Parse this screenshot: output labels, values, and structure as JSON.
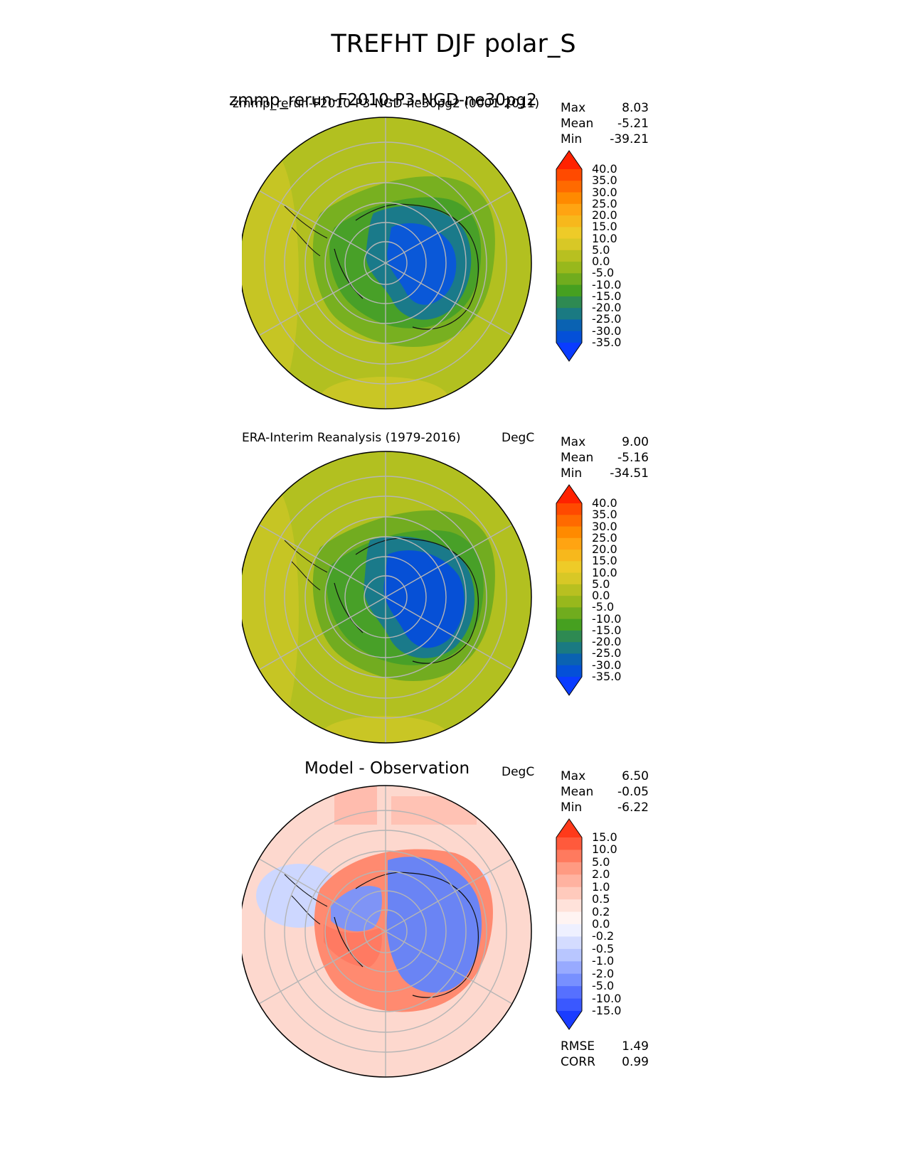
{
  "figure": {
    "title": "TREFHT DJF polar_S"
  },
  "panels": [
    {
      "id": "test",
      "title_large": "zmmp_rerun-F2010-P3-NGD-ne30pg2",
      "title_small": "zmmp_rerun-F2010-P3-NGD-ne30pg2 (0001-2011)",
      "units": "",
      "stats": {
        "max_label": "Max",
        "max": "8.03",
        "mean_label": "Mean",
        "mean": "-5.21",
        "min_label": "Min",
        "min": "-39.21"
      }
    },
    {
      "id": "reference",
      "title_small": "ERA-Interim Reanalysis (1979-2016)",
      "units": "DegC",
      "stats": {
        "max_label": "Max",
        "max": "9.00",
        "mean_label": "Mean",
        "mean": "-5.16",
        "min_label": "Min",
        "min": "-34.51"
      }
    },
    {
      "id": "diff",
      "title_large": "Model - Observation",
      "units": "DegC",
      "stats": {
        "max_label": "Max",
        "max": "6.50",
        "mean_label": "Mean",
        "mean": "-0.05",
        "min_label": "Min",
        "min": "-6.22"
      },
      "metrics": {
        "rmse_label": "RMSE",
        "rmse": "1.49",
        "corr_label": "CORR",
        "corr": "0.99"
      }
    }
  ],
  "chart_data": [
    {
      "type": "heatmap",
      "projection": "polar stereographic (south)",
      "title": "zmmp_rerun-F2010-P3-NGD-ne30pg2 (0001-2011)",
      "variable": "TREFHT",
      "colorbar_ticks": [
        "40.0",
        "35.0",
        "30.0",
        "25.0",
        "20.0",
        "15.0",
        "10.0",
        "5.0",
        "0.0",
        "-5.0",
        "-10.0",
        "-15.0",
        "-20.0",
        "-25.0",
        "-30.0",
        "-35.0"
      ],
      "colorbar_colors": [
        "#ff2200",
        "#ff4a00",
        "#ff6a00",
        "#ff8a00",
        "#ffa412",
        "#f7b81c",
        "#eecb28",
        "#d8c826",
        "#b8c020",
        "#98b81c",
        "#70ac1e",
        "#46a020",
        "#2e8a52",
        "#1a7a82",
        "#0a62b2",
        "#0450d8",
        "#0a3cff"
      ],
      "max": 8.03,
      "mean": -5.21,
      "min": -39.21
    },
    {
      "type": "heatmap",
      "projection": "polar stereographic (south)",
      "title": "ERA-Interim Reanalysis (1979-2016)",
      "variable": "TREFHT",
      "units": "DegC",
      "colorbar_ticks": [
        "40.0",
        "35.0",
        "30.0",
        "25.0",
        "20.0",
        "15.0",
        "10.0",
        "5.0",
        "0.0",
        "-5.0",
        "-10.0",
        "-15.0",
        "-20.0",
        "-25.0",
        "-30.0",
        "-35.0"
      ],
      "colorbar_colors": [
        "#ff2200",
        "#ff4a00",
        "#ff6a00",
        "#ff8a00",
        "#ffa412",
        "#f7b81c",
        "#eecb28",
        "#d8c826",
        "#b8c020",
        "#98b81c",
        "#70ac1e",
        "#46a020",
        "#2e8a52",
        "#1a7a82",
        "#0a62b2",
        "#0450d8",
        "#0a3cff"
      ],
      "max": 9.0,
      "mean": -5.16,
      "min": -34.51
    },
    {
      "type": "heatmap",
      "projection": "polar stereographic (south)",
      "title": "Model - Observation",
      "units": "DegC",
      "colorbar_ticks": [
        "15.0",
        "10.0",
        "5.0",
        "2.0",
        "1.0",
        "0.5",
        "0.2",
        "0.0",
        "-0.2",
        "-0.5",
        "-1.0",
        "-2.0",
        "-5.0",
        "-10.0",
        "-15.0"
      ],
      "colorbar_colors": [
        "#ff3a1a",
        "#ff5a3c",
        "#ff7a5e",
        "#ff9a82",
        "#ffb2a0",
        "#ffcabc",
        "#ffe2da",
        "#fff4f2",
        "#eef0ff",
        "#d4dcff",
        "#b8c6ff",
        "#98aaff",
        "#7890ff",
        "#5670ff",
        "#3a58ff",
        "#1a3cff"
      ],
      "max": 6.5,
      "mean": -0.05,
      "min": -6.22,
      "rmse": 1.49,
      "corr": 0.99
    }
  ]
}
